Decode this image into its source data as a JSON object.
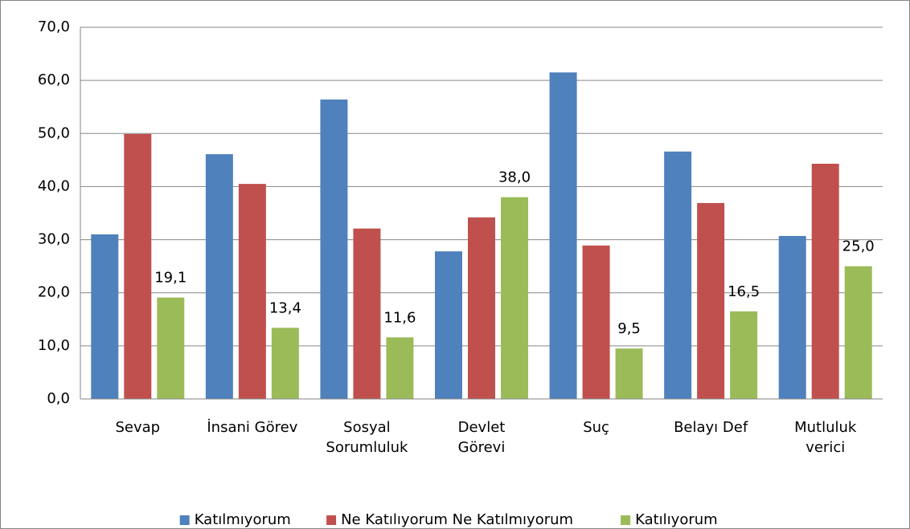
{
  "chart_data": {
    "type": "bar",
    "categories": [
      "Sevap",
      "İnsani Görev",
      "Sosyal\nSorumluluk",
      "Devlet\nGörevi",
      "Suç",
      "Belayı Def",
      "Mutluluk\nverici"
    ],
    "series": [
      {
        "name": "Katılmıyorum",
        "color": "#4f81bd",
        "values": [
          31.0,
          46.1,
          56.4,
          27.8,
          61.5,
          46.6,
          30.7
        ]
      },
      {
        "name": "Ne Katılıyorum Ne Katılmıyorum",
        "color": "#c0504d",
        "values": [
          49.9,
          40.5,
          32.1,
          34.2,
          28.9,
          36.9,
          44.3
        ]
      },
      {
        "name": "Katılıyorum",
        "color": "#9bbb59",
        "values": [
          19.1,
          13.4,
          11.6,
          38.0,
          9.5,
          16.5,
          25.0
        ],
        "value_labels": [
          "19,1",
          "13,4",
          "11,6",
          "38,0",
          "9,5",
          "16,5",
          "25,0"
        ]
      }
    ],
    "ylim": [
      0,
      70
    ],
    "yticks": [
      {
        "value": 0,
        "label": "0,0"
      },
      {
        "value": 10,
        "label": "10,0"
      },
      {
        "value": 20,
        "label": "20,0"
      },
      {
        "value": 30,
        "label": "30,0"
      },
      {
        "value": 40,
        "label": "40,0"
      },
      {
        "value": 50,
        "label": "50,0"
      },
      {
        "value": 60,
        "label": "60,0"
      },
      {
        "value": 70,
        "label": "70,0"
      }
    ],
    "grid": true,
    "legend": "bottom"
  }
}
